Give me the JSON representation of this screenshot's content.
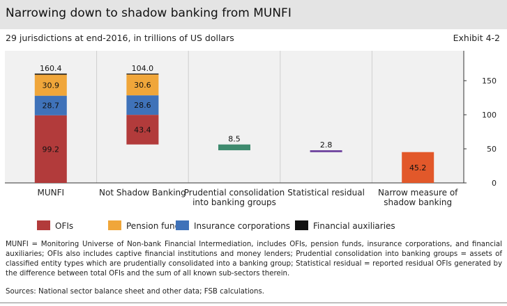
{
  "header": {
    "title": "Narrowing down to shadow banking from MUNFI",
    "subtitle": "29 jurisdictions at end-2016, in trillions of US dollars",
    "exhibit": "Exhibit 4-2"
  },
  "chart_data": {
    "type": "bar",
    "stacked": true,
    "categories": [
      [
        "MUNFI"
      ],
      [
        "Not Shadow Banking"
      ],
      [
        "Prudential consolidation",
        "into banking groups"
      ],
      [
        "Statistical residual"
      ],
      [
        "Narrow measure of",
        "shadow banking"
      ]
    ],
    "legend_position": "bottom",
    "grid": false,
    "y_axis": {
      "position": "right",
      "ylim": [
        0,
        170
      ],
      "ticks": [
        "0",
        "50",
        "100",
        "150"
      ]
    },
    "legend": [
      {
        "name": "OFIs",
        "color": "#b23b3b"
      },
      {
        "name": "Pension funds",
        "color": "#f0a63a"
      },
      {
        "name": "Insurance corporations",
        "color": "#3f72b9"
      },
      {
        "name": "Financial auxiliaries",
        "color": "#111111"
      }
    ],
    "bars": [
      {
        "mode": "stack",
        "segments": [
          {
            "series": "OFIs",
            "value": 99.2,
            "label": "99.2"
          },
          {
            "series": "Insurance corporations",
            "value": 28.7,
            "label": "28.7"
          },
          {
            "series": "Pension funds",
            "value": 30.9,
            "label": "30.9"
          },
          {
            "series": "Financial auxiliaries",
            "value": 1.6
          }
        ],
        "total_label": "160.4"
      },
      {
        "mode": "waterfall",
        "top": 160.4,
        "segments": [
          {
            "series": "OFIs",
            "value": 43.4,
            "label": "43.4"
          },
          {
            "series": "Insurance corporations",
            "value": 28.6,
            "label": "28.6"
          },
          {
            "series": "Pension funds",
            "value": 30.6,
            "label": "30.6"
          },
          {
            "series": "Financial auxiliaries",
            "value": 1.4
          }
        ],
        "total_label": "104.0"
      },
      {
        "mode": "waterfall",
        "top": 56.4,
        "segments": [
          {
            "value": 8.5,
            "color": "#3e8a6e"
          }
        ],
        "total_label": "8.5"
      },
      {
        "mode": "waterfall",
        "top": 47.9,
        "segments": [
          {
            "value": 2.8,
            "color": "#6b3f9c"
          }
        ],
        "total_label": "2.8"
      },
      {
        "mode": "stack",
        "segments": [
          {
            "value": 45.2,
            "label": "45.2",
            "color": "#e2582a"
          }
        ]
      }
    ]
  },
  "notes": "MUNFI = Monitoring Universe of Non-bank Financial Intermediation, includes OFIs, pension funds, insurance corporations, and financial auxiliaries; OFIs also includes captive financial institutions and money lenders; Prudential consolidation into banking groups = assets of classified entity types which are prudentially consolidated into a banking group; Statistical residual = reported residual OFIs generated by the difference between total OFIs and the sum of all known sub-sectors therein.",
  "sources": "Sources: National sector balance sheet and other data; FSB calculations."
}
